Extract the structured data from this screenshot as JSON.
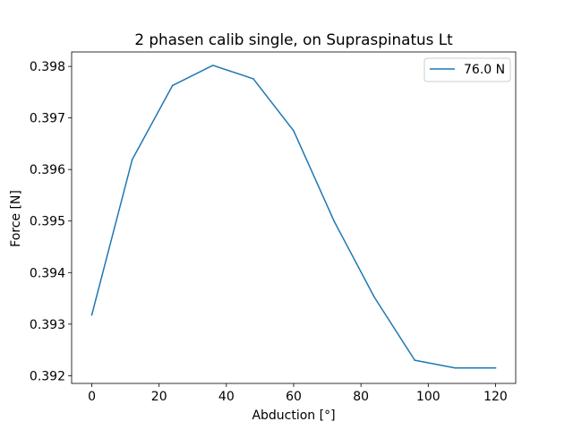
{
  "chart_data": {
    "type": "line",
    "title": "2 phasen calib single, on Supraspinatus Lt",
    "xlabel": "Abduction [°]",
    "ylabel": "Force [N]",
    "xlim": [
      -6,
      126
    ],
    "ylim": [
      0.39185,
      0.39828
    ],
    "xticks": [
      0,
      20,
      40,
      60,
      80,
      100,
      120
    ],
    "xtick_labels": [
      "0",
      "20",
      "40",
      "60",
      "80",
      "100",
      "120"
    ],
    "yticks": [
      0.392,
      0.393,
      0.394,
      0.395,
      0.396,
      0.397,
      0.398
    ],
    "ytick_labels": [
      "0.392",
      "0.393",
      "0.394",
      "0.395",
      "0.396",
      "0.397",
      "0.398"
    ],
    "grid": false,
    "legend_position": "top-right",
    "series": [
      {
        "name": "76.0 N",
        "color": "#1f77b4",
        "x": [
          0,
          12,
          24,
          36,
          48,
          60,
          72,
          84,
          96,
          108,
          120
        ],
        "y": [
          0.39318,
          0.39619,
          0.39763,
          0.39802,
          0.39776,
          0.39675,
          0.395,
          0.39352,
          0.3923,
          0.39215,
          0.39215
        ]
      }
    ]
  }
}
